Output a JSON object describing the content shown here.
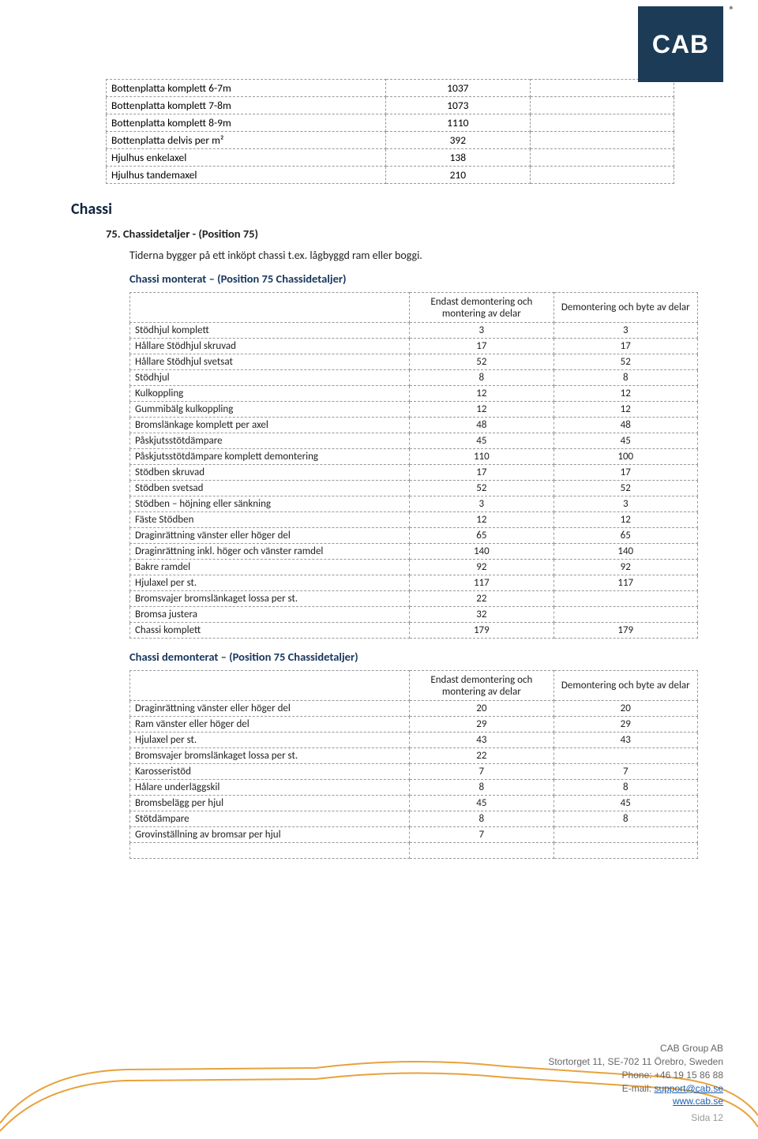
{
  "logo_text": "CAB",
  "reg_mark": "®",
  "top_table": {
    "rows": [
      [
        "Bottenplatta komplett 6-7m",
        "1037",
        ""
      ],
      [
        "Bottenplatta komplett 7-8m",
        "1073",
        ""
      ],
      [
        "Bottenplatta komplett 8-9m",
        "1110",
        ""
      ],
      [
        "Bottenplatta delvis per m²",
        "392",
        ""
      ],
      [
        "Hjulhus enkelaxel",
        "138",
        ""
      ],
      [
        "Hjulhus tandemaxel",
        "210",
        ""
      ]
    ]
  },
  "section_title": "Chassi",
  "position": {
    "number": "75.",
    "title": "Chassidetaljer - (Position 75)",
    "body": "Tiderna bygger på ett inköpt chassi t.ex. lågbyggd ram eller boggi."
  },
  "monterat": {
    "heading": "Chassi monterat – (Position 75 Chassidetaljer)",
    "col1": "Endast demontering och montering av delar",
    "col2": "Demontering och byte av delar",
    "rows": [
      [
        "Stödhjul komplett",
        "3",
        "3"
      ],
      [
        "Hållare Stödhjul skruvad",
        "17",
        "17"
      ],
      [
        "Hållare Stödhjul svetsat",
        "52",
        "52"
      ],
      [
        "Stödhjul",
        "8",
        "8"
      ],
      [
        "Kulkoppling",
        "12",
        "12"
      ],
      [
        "Gummibälg kulkoppling",
        "12",
        "12"
      ],
      [
        "Bromslänkage komplett per axel",
        "48",
        "48"
      ],
      [
        "Påskjutsstötdämpare",
        "45",
        "45"
      ],
      [
        "Påskjutsstötdämpare komplett demontering",
        "110",
        "100"
      ],
      [
        "Stödben skruvad",
        "17",
        "17"
      ],
      [
        "Stödben svetsad",
        "52",
        "52"
      ],
      [
        "Stödben – höjning eller sänkning",
        "3",
        "3"
      ],
      [
        "Fäste Stödben",
        "12",
        "12"
      ],
      [
        "Draginrättning vänster eller höger del",
        "65",
        "65"
      ],
      [
        "Draginrättning inkl. höger och vänster ramdel",
        "140",
        "140"
      ],
      [
        "Bakre ramdel",
        "92",
        "92"
      ],
      [
        "Hjulaxel per st.",
        "117",
        "117"
      ],
      [
        "Bromsvajer bromslänkaget lossa per st.",
        "22",
        ""
      ],
      [
        "Bromsa justera",
        "32",
        ""
      ],
      [
        "Chassi komplett",
        "179",
        "179"
      ]
    ]
  },
  "demonterat": {
    "heading": "Chassi demonterat – (Position 75 Chassidetaljer)",
    "col1": "Endast demontering och montering av delar",
    "col2": "Demontering och byte av delar",
    "rows": [
      [
        "Draginrättning vänster eller höger del",
        "20",
        "20"
      ],
      [
        "Ram vänster eller höger del",
        "29",
        "29"
      ],
      [
        "Hjulaxel per st.",
        "43",
        "43"
      ],
      [
        "Bromsvajer bromslänkaget lossa per st.",
        "22",
        ""
      ],
      [
        "Karosseristöd",
        "7",
        "7"
      ],
      [
        "Hålare underläggskil",
        "8",
        "8"
      ],
      [
        "Bromsbelägg per hjul",
        "45",
        "45"
      ],
      [
        "Stötdämpare",
        "8",
        "8"
      ],
      [
        "Grovinställning av bromsar per hjul",
        "7",
        ""
      ],
      [
        "",
        "",
        ""
      ]
    ]
  },
  "footer": {
    "company": "CAB Group AB",
    "address": "Stortorget 11, SE-702 11 Örebro, Sweden",
    "phone": "Phone: +46 19 15 86 88",
    "email_label": "E-mail: ",
    "email": "support@cab.se",
    "web": "www.cab.se",
    "page": "Sida 12"
  },
  "colors": {
    "logo_bg": "#1c3b57",
    "heading": "#17365d",
    "car_outline": "#e8a23a",
    "border": "#999999"
  }
}
